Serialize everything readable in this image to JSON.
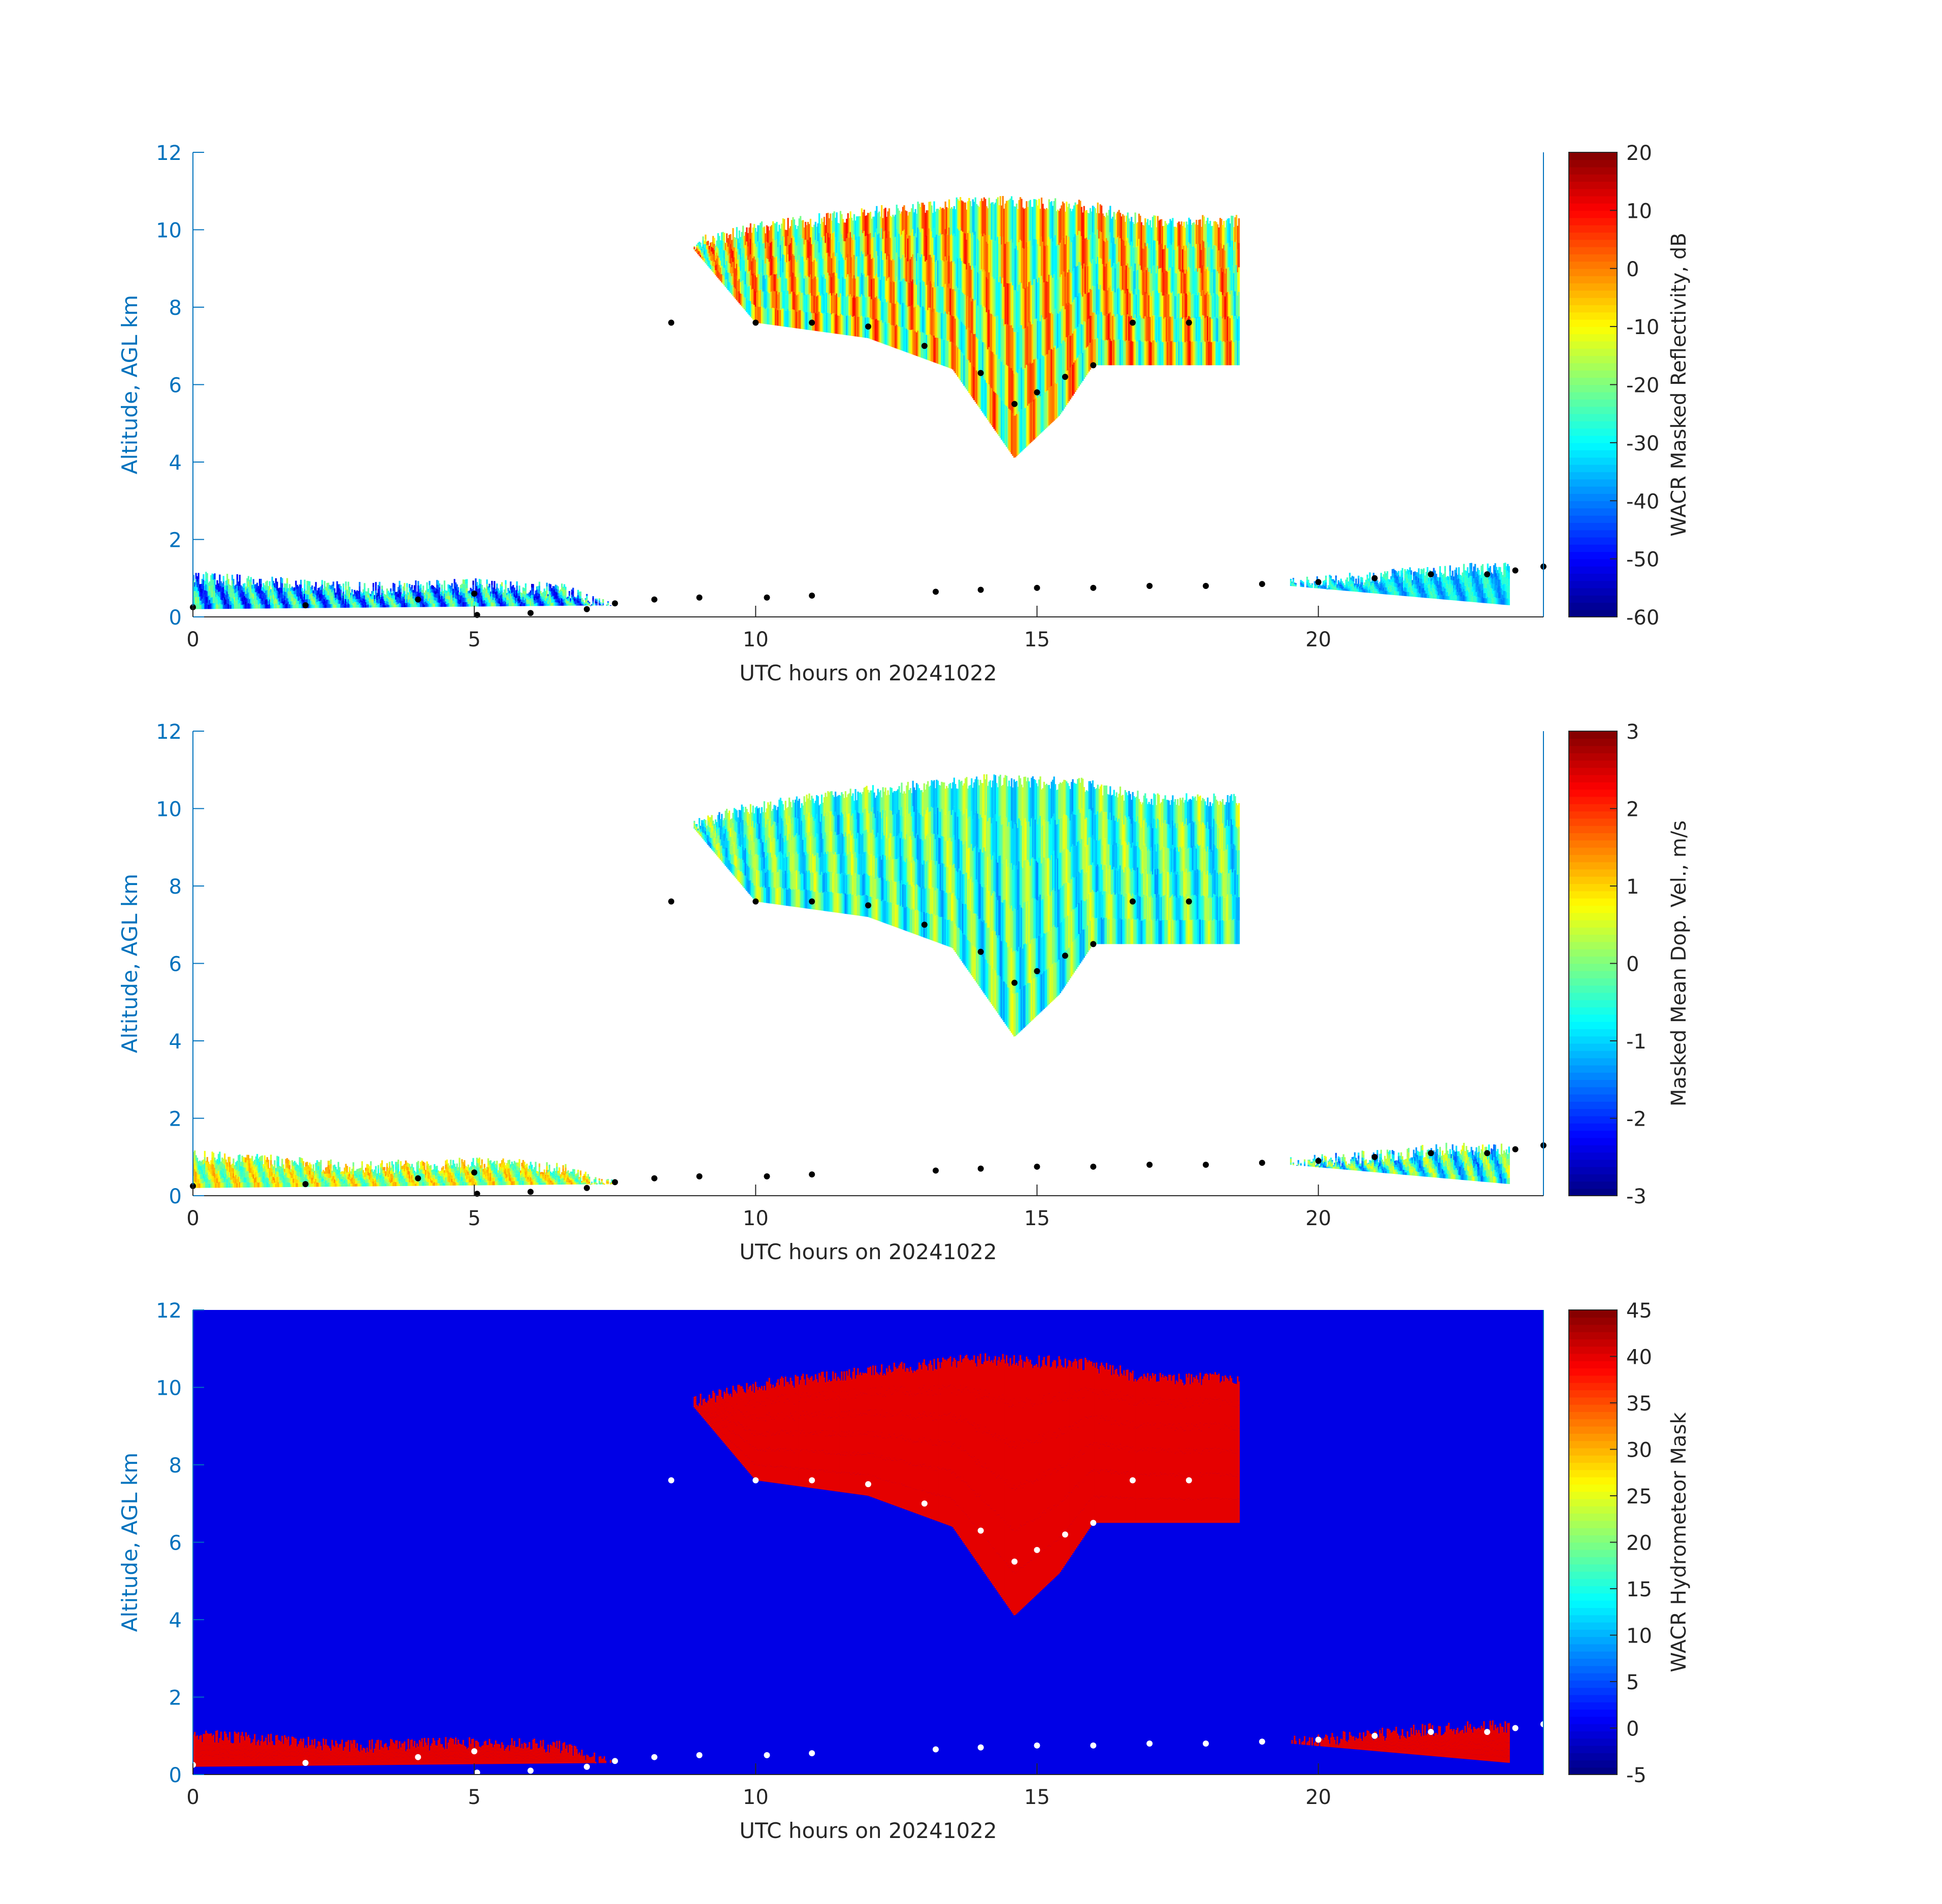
{
  "chart_data": [
    {
      "type": "heatmap",
      "xlabel": "UTC hours on 20241022",
      "ylabel": "Altitude, AGL km",
      "xlim": [
        0,
        24
      ],
      "ylim": [
        0,
        12
      ],
      "xticks": [
        0,
        5,
        10,
        15,
        20
      ],
      "yticks": [
        0,
        2,
        4,
        6,
        8,
        10,
        12
      ],
      "colorbar": {
        "label": "WACR Masked Reflectivity, dB",
        "min": -60,
        "max": 20,
        "ticks": [
          -60,
          -50,
          -40,
          -30,
          -20,
          -10,
          0,
          10,
          20
        ],
        "colormap": "jet"
      },
      "background_color": "#ffffff",
      "axis_color": "#0072bd",
      "overlay_color": "#000000",
      "features": [
        {
          "name": "upper cloud",
          "x_range": [
            8.9,
            18.6
          ],
          "base_km": [
            [
              8.9,
              9.5
            ],
            [
              10,
              7.6
            ],
            [
              12,
              7.2
            ],
            [
              13.5,
              6.4
            ],
            [
              14.6,
              4.1
            ],
            [
              15.4,
              5.2
            ],
            [
              16,
              6.5
            ]
          ],
          "top_km": [
            [
              8.9,
              9.8
            ],
            [
              10,
              10.2
            ],
            [
              12,
              10.6
            ],
            [
              14,
              10.9
            ],
            [
              15.8,
              10.8
            ],
            [
              17,
              10.4
            ],
            [
              18.6,
              10.4
            ]
          ],
          "values": [
            -30,
            5
          ]
        },
        {
          "name": "boundary layer cloud",
          "x_range": [
            0,
            7.5
          ],
          "base_km": [
            [
              0,
              0.2
            ],
            [
              7.5,
              0.3
            ]
          ],
          "top_km": [
            [
              0,
              1.2
            ],
            [
              3,
              0.9
            ],
            [
              5,
              1.0
            ],
            [
              6.5,
              0.9
            ],
            [
              7.5,
              0.4
            ]
          ],
          "values": [
            -50,
            -20
          ]
        },
        {
          "name": "low cloud after 19 h",
          "x_range": [
            19.5,
            23.4
          ],
          "base_km": [
            [
              19.5,
              0.8
            ],
            [
              23.4,
              0.3
            ]
          ],
          "top_km": [
            [
              19.5,
              1.0
            ],
            [
              22.5,
              1.4
            ],
            [
              23.4,
              1.4
            ]
          ],
          "values": [
            -40,
            -25
          ]
        }
      ],
      "overlay_points": [
        [
          0,
          0.25
        ],
        [
          2,
          0.3
        ],
        [
          4,
          0.45
        ],
        [
          5,
          0.6
        ],
        [
          5.05,
          0.05
        ],
        [
          6,
          0.1
        ],
        [
          7,
          0.2
        ],
        [
          7.5,
          0.35
        ],
        [
          8.2,
          0.45
        ],
        [
          9,
          0.5
        ],
        [
          10.2,
          0.5
        ],
        [
          11,
          0.55
        ],
        [
          13.2,
          0.65
        ],
        [
          14,
          0.7
        ],
        [
          15,
          0.75
        ],
        [
          16,
          0.75
        ],
        [
          17,
          0.8
        ],
        [
          18,
          0.8
        ],
        [
          19,
          0.85
        ],
        [
          20,
          0.9
        ],
        [
          21,
          1.0
        ],
        [
          22,
          1.1
        ],
        [
          23,
          1.1
        ],
        [
          23.5,
          1.2
        ],
        [
          24,
          1.3
        ],
        [
          8.5,
          7.6
        ],
        [
          10,
          7.6
        ],
        [
          11,
          7.6
        ],
        [
          12,
          7.5
        ],
        [
          13,
          7.0
        ],
        [
          14,
          6.3
        ],
        [
          14.6,
          5.5
        ],
        [
          15,
          5.8
        ],
        [
          15.5,
          6.2
        ],
        [
          16,
          6.5
        ],
        [
          16.7,
          7.6
        ],
        [
          17.7,
          7.6
        ]
      ]
    },
    {
      "type": "heatmap",
      "xlabel": "UTC hours on 20241022",
      "ylabel": "Altitude, AGL km",
      "xlim": [
        0,
        24
      ],
      "ylim": [
        0,
        12
      ],
      "xticks": [
        0,
        5,
        10,
        15,
        20
      ],
      "yticks": [
        0,
        2,
        4,
        6,
        8,
        10,
        12
      ],
      "colorbar": {
        "label": "Masked Mean Dop. Vel., m/s",
        "min": -3,
        "max": 3,
        "ticks": [
          -3,
          -2,
          -1,
          0,
          1,
          2,
          3
        ],
        "colormap": "jet"
      },
      "background_color": "#ffffff",
      "axis_color": "#0072bd",
      "overlay_color": "#000000",
      "features": [
        {
          "name": "upper cloud",
          "x_range": [
            8.9,
            18.6
          ],
          "base_km": [
            [
              8.9,
              9.5
            ],
            [
              10,
              7.6
            ],
            [
              12,
              7.2
            ],
            [
              13.5,
              6.4
            ],
            [
              14.6,
              4.1
            ],
            [
              15.4,
              5.2
            ],
            [
              16,
              6.5
            ]
          ],
          "top_km": [
            [
              8.9,
              9.8
            ],
            [
              10,
              10.2
            ],
            [
              12,
              10.6
            ],
            [
              14,
              10.9
            ],
            [
              15.8,
              10.8
            ],
            [
              17,
              10.4
            ],
            [
              18.6,
              10.4
            ]
          ],
          "values": [
            -1.2,
            0.5
          ]
        },
        {
          "name": "boundary layer cloud",
          "x_range": [
            0,
            7.5
          ],
          "base_km": [
            [
              0,
              0.2
            ],
            [
              7.5,
              0.3
            ]
          ],
          "top_km": [
            [
              0,
              1.2
            ],
            [
              3,
              0.9
            ],
            [
              5,
              1.0
            ],
            [
              6.5,
              0.9
            ],
            [
              7.5,
              0.4
            ]
          ],
          "values": [
            -0.5,
            1.2
          ]
        },
        {
          "name": "low cloud after 19 h",
          "x_range": [
            19.5,
            23.4
          ],
          "base_km": [
            [
              19.5,
              0.8
            ],
            [
              23.4,
              0.3
            ]
          ],
          "top_km": [
            [
              19.5,
              1.0
            ],
            [
              22.5,
              1.4
            ],
            [
              23.4,
              1.4
            ]
          ],
          "values": [
            -1.5,
            0.5
          ]
        }
      ],
      "overlay_points": [
        [
          0,
          0.25
        ],
        [
          2,
          0.3
        ],
        [
          4,
          0.45
        ],
        [
          5,
          0.6
        ],
        [
          5.05,
          0.05
        ],
        [
          6,
          0.1
        ],
        [
          7,
          0.2
        ],
        [
          7.5,
          0.35
        ],
        [
          8.2,
          0.45
        ],
        [
          9,
          0.5
        ],
        [
          10.2,
          0.5
        ],
        [
          11,
          0.55
        ],
        [
          13.2,
          0.65
        ],
        [
          14,
          0.7
        ],
        [
          15,
          0.75
        ],
        [
          16,
          0.75
        ],
        [
          17,
          0.8
        ],
        [
          18,
          0.8
        ],
        [
          19,
          0.85
        ],
        [
          20,
          0.9
        ],
        [
          21,
          1.0
        ],
        [
          22,
          1.1
        ],
        [
          23,
          1.1
        ],
        [
          23.5,
          1.2
        ],
        [
          24,
          1.3
        ],
        [
          8.5,
          7.6
        ],
        [
          10,
          7.6
        ],
        [
          11,
          7.6
        ],
        [
          12,
          7.5
        ],
        [
          13,
          7.0
        ],
        [
          14,
          6.3
        ],
        [
          14.6,
          5.5
        ],
        [
          15,
          5.8
        ],
        [
          15.5,
          6.2
        ],
        [
          16,
          6.5
        ],
        [
          16.7,
          7.6
        ],
        [
          17.7,
          7.6
        ]
      ]
    },
    {
      "type": "heatmap",
      "xlabel": "UTC hours on 20241022",
      "ylabel": "Altitude, AGL km",
      "xlim": [
        0,
        24
      ],
      "ylim": [
        0,
        12
      ],
      "xticks": [
        0,
        5,
        10,
        15,
        20
      ],
      "yticks": [
        0,
        2,
        4,
        6,
        8,
        10,
        12
      ],
      "colorbar": {
        "label": "WACR Hydrometeor Mask",
        "min": -5,
        "max": 45,
        "ticks": [
          -5,
          0,
          5,
          10,
          15,
          20,
          25,
          30,
          35,
          40,
          45
        ],
        "colormap": "jet"
      },
      "background_color": "#0000e6",
      "axis_color": "#0072bd",
      "overlay_color": "#ffffff",
      "features": [
        {
          "name": "upper cloud",
          "x_range": [
            8.9,
            18.6
          ],
          "base_km": [
            [
              8.9,
              9.5
            ],
            [
              10,
              7.6
            ],
            [
              12,
              7.2
            ],
            [
              13.5,
              6.4
            ],
            [
              14.6,
              4.1
            ],
            [
              15.4,
              5.2
            ],
            [
              16,
              6.5
            ]
          ],
          "top_km": [
            [
              8.9,
              9.8
            ],
            [
              10,
              10.2
            ],
            [
              12,
              10.6
            ],
            [
              14,
              10.9
            ],
            [
              15.8,
              10.8
            ],
            [
              17,
              10.4
            ],
            [
              18.6,
              10.4
            ]
          ],
          "values": [
            40,
            40
          ]
        },
        {
          "name": "boundary layer cloud",
          "x_range": [
            0,
            7.5
          ],
          "base_km": [
            [
              0,
              0.2
            ],
            [
              7.5,
              0.3
            ]
          ],
          "top_km": [
            [
              0,
              1.2
            ],
            [
              3,
              0.9
            ],
            [
              5,
              1.0
            ],
            [
              6.5,
              0.9
            ],
            [
              7.5,
              0.4
            ]
          ],
          "values": [
            40,
            40
          ]
        },
        {
          "name": "low cloud after 19 h",
          "x_range": [
            19.5,
            23.4
          ],
          "base_km": [
            [
              19.5,
              0.8
            ],
            [
              23.4,
              0.3
            ]
          ],
          "top_km": [
            [
              19.5,
              1.0
            ],
            [
              22.5,
              1.4
            ],
            [
              23.4,
              1.4
            ]
          ],
          "values": [
            40,
            40
          ]
        }
      ],
      "overlay_points": [
        [
          0,
          0.25
        ],
        [
          2,
          0.3
        ],
        [
          4,
          0.45
        ],
        [
          5,
          0.6
        ],
        [
          5.05,
          0.05
        ],
        [
          6,
          0.1
        ],
        [
          7,
          0.2
        ],
        [
          7.5,
          0.35
        ],
        [
          8.2,
          0.45
        ],
        [
          9,
          0.5
        ],
        [
          10.2,
          0.5
        ],
        [
          11,
          0.55
        ],
        [
          13.2,
          0.65
        ],
        [
          14,
          0.7
        ],
        [
          15,
          0.75
        ],
        [
          16,
          0.75
        ],
        [
          17,
          0.8
        ],
        [
          18,
          0.8
        ],
        [
          19,
          0.85
        ],
        [
          20,
          0.9
        ],
        [
          21,
          1.0
        ],
        [
          22,
          1.1
        ],
        [
          23,
          1.1
        ],
        [
          23.5,
          1.2
        ],
        [
          24,
          1.3
        ],
        [
          8.5,
          7.6
        ],
        [
          10,
          7.6
        ],
        [
          11,
          7.6
        ],
        [
          12,
          7.5
        ],
        [
          13,
          7.0
        ],
        [
          14,
          6.3
        ],
        [
          14.6,
          5.5
        ],
        [
          15,
          5.8
        ],
        [
          15.5,
          6.2
        ],
        [
          16,
          6.5
        ],
        [
          16.7,
          7.6
        ],
        [
          17.7,
          7.6
        ]
      ]
    }
  ]
}
